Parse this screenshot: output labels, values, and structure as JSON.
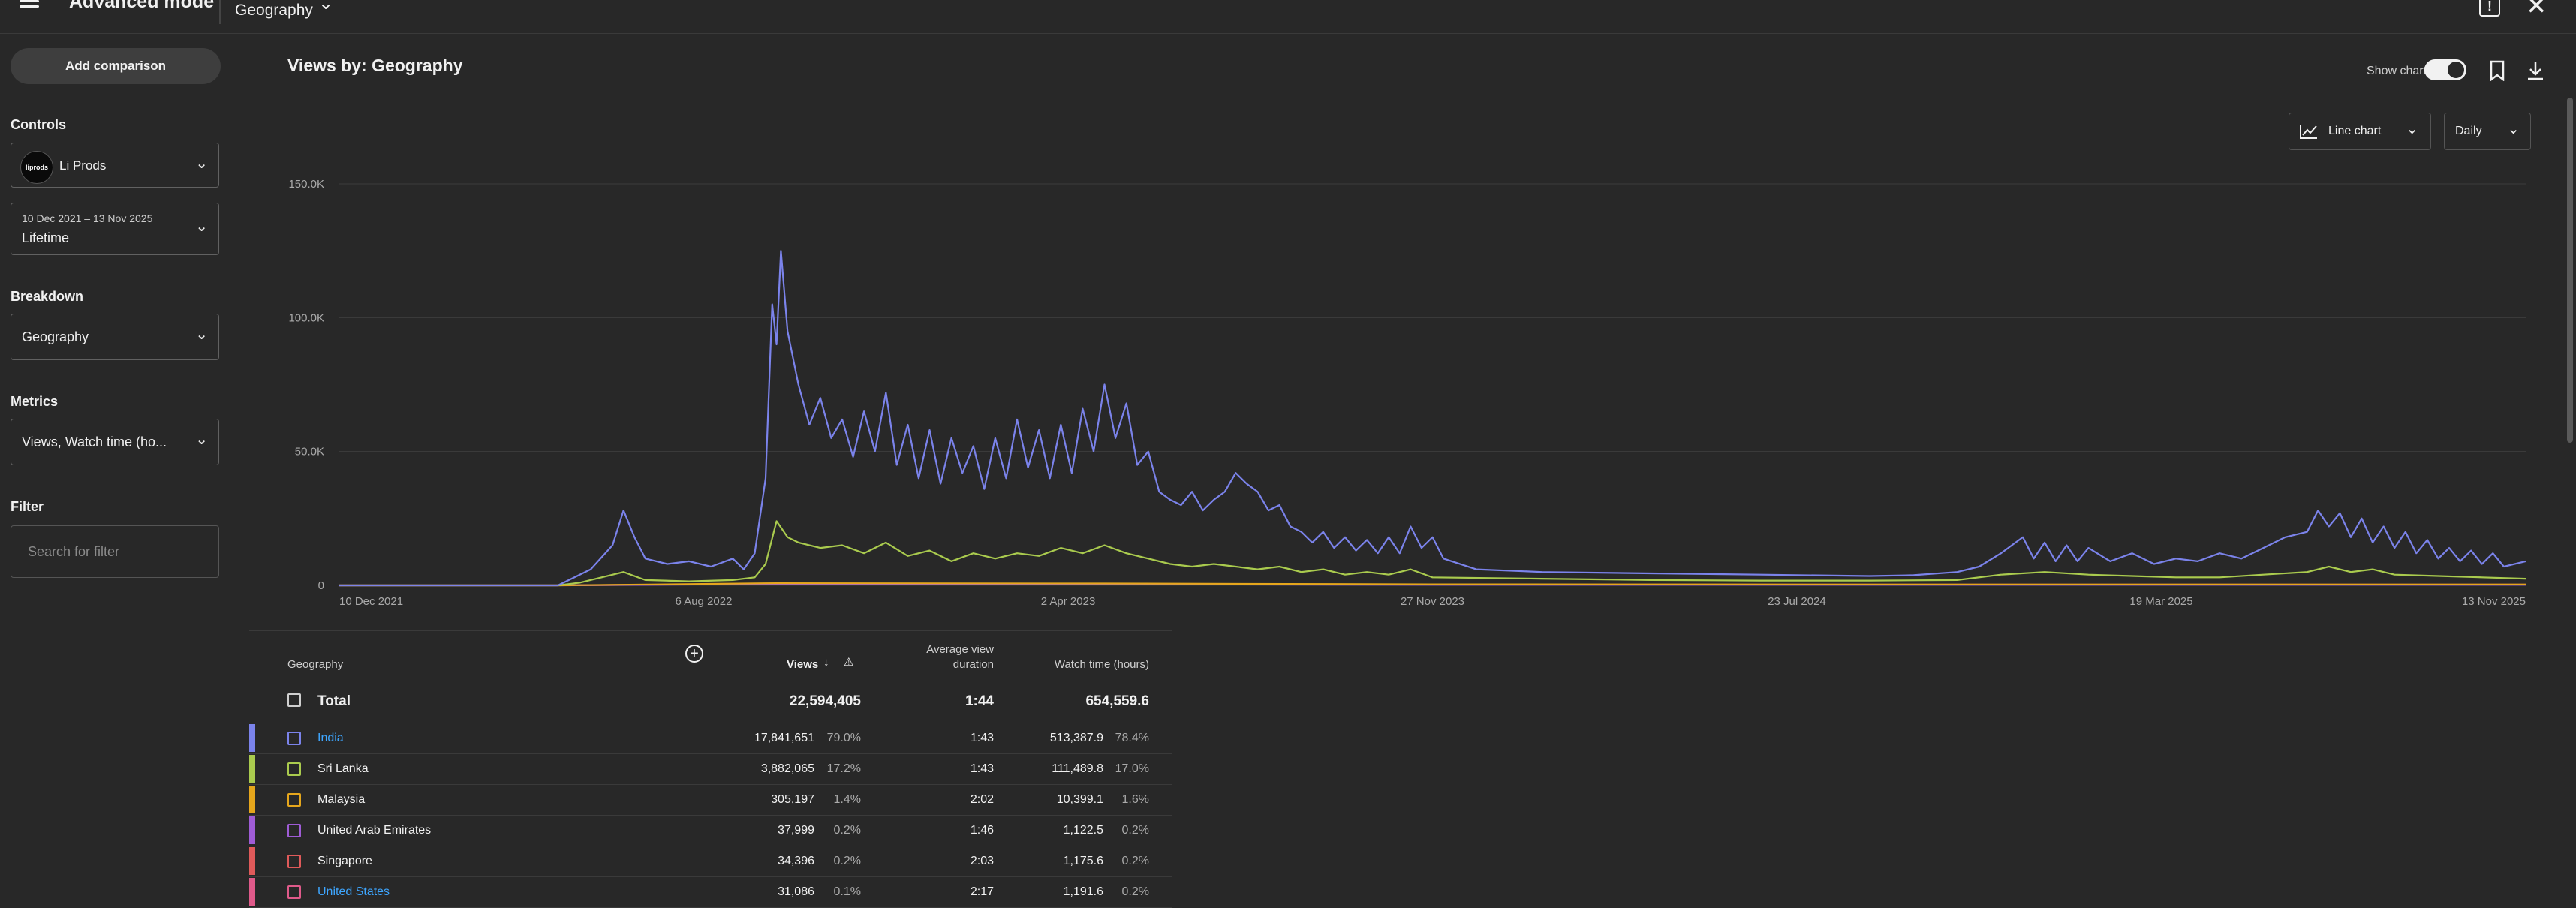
{
  "header": {
    "title": "Advanced mode",
    "dimension": "Geography"
  },
  "sidebar": {
    "add_comparison": "Add comparison",
    "controls_label": "Controls",
    "channel": "Li Prods",
    "channel_avatar_text": "liprods",
    "date_range": "10 Dec 2021 – 13 Nov 2025",
    "date_preset": "Lifetime",
    "breakdown_label": "Breakdown",
    "breakdown_value": "Geography",
    "metrics_label": "Metrics",
    "metrics_value": "Views, Watch time (ho...",
    "filter_label": "Filter",
    "filter_placeholder": "Search for filter"
  },
  "main": {
    "title": "Views by: Geography",
    "show_chart_label": "Show chart",
    "show_chart_on": true,
    "chart_type": "Line chart",
    "period": "Daily"
  },
  "chart_data": {
    "type": "line",
    "y_ticks": [
      "150.0K",
      "100.0K",
      "50.0K",
      "0"
    ],
    "ylim": [
      0,
      150000
    ],
    "x_ticks": [
      "10 Dec 2021",
      "6 Aug 2022",
      "2 Apr 2023",
      "27 Nov 2023",
      "23 Jul 2024",
      "19 Mar 2025",
      "13 Nov 2025"
    ],
    "series": [
      {
        "name": "India",
        "color": "#7b83eb",
        "points": [
          [
            0,
            0
          ],
          [
            0.1,
            0
          ],
          [
            0.105,
            2000
          ],
          [
            0.115,
            6000
          ],
          [
            0.125,
            15000
          ],
          [
            0.13,
            28000
          ],
          [
            0.135,
            18000
          ],
          [
            0.14,
            10000
          ],
          [
            0.15,
            8000
          ],
          [
            0.16,
            9000
          ],
          [
            0.17,
            7000
          ],
          [
            0.18,
            10000
          ],
          [
            0.185,
            6000
          ],
          [
            0.19,
            12000
          ],
          [
            0.195,
            40000
          ],
          [
            0.198,
            105000
          ],
          [
            0.2,
            90000
          ],
          [
            0.202,
            125000
          ],
          [
            0.205,
            95000
          ],
          [
            0.21,
            75000
          ],
          [
            0.215,
            60000
          ],
          [
            0.22,
            70000
          ],
          [
            0.225,
            55000
          ],
          [
            0.23,
            62000
          ],
          [
            0.235,
            48000
          ],
          [
            0.24,
            65000
          ],
          [
            0.245,
            50000
          ],
          [
            0.25,
            72000
          ],
          [
            0.255,
            45000
          ],
          [
            0.26,
            60000
          ],
          [
            0.265,
            40000
          ],
          [
            0.27,
            58000
          ],
          [
            0.275,
            38000
          ],
          [
            0.28,
            55000
          ],
          [
            0.285,
            42000
          ],
          [
            0.29,
            52000
          ],
          [
            0.295,
            36000
          ],
          [
            0.3,
            55000
          ],
          [
            0.305,
            40000
          ],
          [
            0.31,
            62000
          ],
          [
            0.315,
            44000
          ],
          [
            0.32,
            58000
          ],
          [
            0.325,
            40000
          ],
          [
            0.33,
            60000
          ],
          [
            0.335,
            42000
          ],
          [
            0.34,
            66000
          ],
          [
            0.345,
            50000
          ],
          [
            0.35,
            75000
          ],
          [
            0.355,
            55000
          ],
          [
            0.36,
            68000
          ],
          [
            0.365,
            45000
          ],
          [
            0.37,
            50000
          ],
          [
            0.375,
            35000
          ],
          [
            0.38,
            32000
          ],
          [
            0.385,
            30000
          ],
          [
            0.39,
            35000
          ],
          [
            0.395,
            28000
          ],
          [
            0.4,
            32000
          ],
          [
            0.405,
            35000
          ],
          [
            0.41,
            42000
          ],
          [
            0.415,
            38000
          ],
          [
            0.42,
            35000
          ],
          [
            0.425,
            28000
          ],
          [
            0.43,
            30000
          ],
          [
            0.435,
            22000
          ],
          [
            0.44,
            20000
          ],
          [
            0.445,
            16000
          ],
          [
            0.45,
            20000
          ],
          [
            0.455,
            14000
          ],
          [
            0.46,
            18000
          ],
          [
            0.465,
            13000
          ],
          [
            0.47,
            17000
          ],
          [
            0.475,
            12000
          ],
          [
            0.48,
            18000
          ],
          [
            0.485,
            12000
          ],
          [
            0.49,
            22000
          ],
          [
            0.495,
            14000
          ],
          [
            0.5,
            18000
          ],
          [
            0.505,
            10000
          ],
          [
            0.52,
            6000
          ],
          [
            0.55,
            5000
          ],
          [
            0.6,
            4500
          ],
          [
            0.65,
            4000
          ],
          [
            0.7,
            3500
          ],
          [
            0.72,
            3800
          ],
          [
            0.74,
            5000
          ],
          [
            0.75,
            7000
          ],
          [
            0.76,
            12000
          ],
          [
            0.77,
            18000
          ],
          [
            0.775,
            10000
          ],
          [
            0.78,
            16000
          ],
          [
            0.785,
            9000
          ],
          [
            0.79,
            15000
          ],
          [
            0.795,
            9000
          ],
          [
            0.8,
            14000
          ],
          [
            0.81,
            9000
          ],
          [
            0.82,
            12000
          ],
          [
            0.83,
            8000
          ],
          [
            0.84,
            10000
          ],
          [
            0.85,
            9000
          ],
          [
            0.86,
            12000
          ],
          [
            0.87,
            10000
          ],
          [
            0.88,
            14000
          ],
          [
            0.89,
            18000
          ],
          [
            0.9,
            20000
          ],
          [
            0.905,
            28000
          ],
          [
            0.91,
            22000
          ],
          [
            0.915,
            27000
          ],
          [
            0.92,
            18000
          ],
          [
            0.925,
            25000
          ],
          [
            0.93,
            16000
          ],
          [
            0.935,
            22000
          ],
          [
            0.94,
            14000
          ],
          [
            0.945,
            20000
          ],
          [
            0.95,
            12000
          ],
          [
            0.955,
            17000
          ],
          [
            0.96,
            10000
          ],
          [
            0.965,
            14000
          ],
          [
            0.97,
            9000
          ],
          [
            0.975,
            13000
          ],
          [
            0.98,
            8000
          ],
          [
            0.985,
            12000
          ],
          [
            0.99,
            7000
          ],
          [
            1,
            9000
          ]
        ]
      },
      {
        "name": "Sri Lanka",
        "color": "#aacb4e",
        "points": [
          [
            0,
            0
          ],
          [
            0.1,
            0
          ],
          [
            0.11,
            1000
          ],
          [
            0.12,
            3000
          ],
          [
            0.13,
            5000
          ],
          [
            0.14,
            2000
          ],
          [
            0.16,
            1500
          ],
          [
            0.18,
            2000
          ],
          [
            0.19,
            3000
          ],
          [
            0.195,
            8000
          ],
          [
            0.2,
            24000
          ],
          [
            0.205,
            18000
          ],
          [
            0.21,
            16000
          ],
          [
            0.22,
            14000
          ],
          [
            0.23,
            15000
          ],
          [
            0.24,
            12000
          ],
          [
            0.25,
            16000
          ],
          [
            0.26,
            11000
          ],
          [
            0.27,
            13000
          ],
          [
            0.28,
            9000
          ],
          [
            0.29,
            12000
          ],
          [
            0.3,
            10000
          ],
          [
            0.31,
            12000
          ],
          [
            0.32,
            11000
          ],
          [
            0.33,
            14000
          ],
          [
            0.34,
            12000
          ],
          [
            0.35,
            15000
          ],
          [
            0.36,
            12000
          ],
          [
            0.37,
            10000
          ],
          [
            0.38,
            8000
          ],
          [
            0.39,
            7000
          ],
          [
            0.4,
            8000
          ],
          [
            0.41,
            7000
          ],
          [
            0.42,
            6000
          ],
          [
            0.43,
            7000
          ],
          [
            0.44,
            5000
          ],
          [
            0.45,
            6000
          ],
          [
            0.46,
            4000
          ],
          [
            0.47,
            5000
          ],
          [
            0.48,
            4000
          ],
          [
            0.49,
            6000
          ],
          [
            0.5,
            3000
          ],
          [
            0.55,
            2500
          ],
          [
            0.6,
            2000
          ],
          [
            0.65,
            1800
          ],
          [
            0.7,
            1800
          ],
          [
            0.74,
            2000
          ],
          [
            0.76,
            4000
          ],
          [
            0.78,
            5000
          ],
          [
            0.8,
            4000
          ],
          [
            0.82,
            3500
          ],
          [
            0.84,
            3000
          ],
          [
            0.86,
            3000
          ],
          [
            0.88,
            4000
          ],
          [
            0.9,
            5000
          ],
          [
            0.91,
            7000
          ],
          [
            0.92,
            5000
          ],
          [
            0.93,
            6000
          ],
          [
            0.94,
            4000
          ],
          [
            0.96,
            3500
          ],
          [
            0.98,
            3000
          ],
          [
            1,
            2500
          ]
        ]
      },
      {
        "name": "Malaysia",
        "color": "#e5a61c",
        "points": [
          [
            0,
            0
          ],
          [
            0.1,
            0
          ],
          [
            0.2,
            800
          ],
          [
            0.35,
            700
          ],
          [
            0.5,
            400
          ],
          [
            0.75,
            300
          ],
          [
            1,
            300
          ]
        ]
      },
      {
        "name": "United Arab Emirates",
        "color": "#9f5cd6",
        "points": [
          [
            0,
            0
          ],
          [
            0.1,
            0
          ],
          [
            0.2,
            500
          ],
          [
            0.35,
            400
          ],
          [
            0.5,
            200
          ],
          [
            1,
            200
          ]
        ]
      },
      {
        "name": "Singapore",
        "color": "#e05a5a",
        "points": [
          [
            0,
            0
          ],
          [
            0.1,
            0
          ],
          [
            0.2,
            600
          ],
          [
            0.35,
            500
          ],
          [
            0.5,
            300
          ],
          [
            1,
            300
          ]
        ]
      }
    ]
  },
  "table": {
    "headers": {
      "geography": "Geography",
      "views": "Views",
      "avd": "Average view",
      "avd2": "duration",
      "watch": "Watch time (hours)"
    },
    "total": {
      "label": "Total",
      "views": "22,594,405",
      "avd": "1:44",
      "watch": "654,559.6"
    },
    "rows": [
      {
        "name": "India",
        "views": "17,841,651",
        "views_pct": "79.0%",
        "avd": "1:43",
        "watch": "513,387.9",
        "watch_pct": "78.4%",
        "color": "#7b83eb",
        "link": true
      },
      {
        "name": "Sri Lanka",
        "views": "3,882,065",
        "views_pct": "17.2%",
        "avd": "1:43",
        "watch": "111,489.8",
        "watch_pct": "17.0%",
        "color": "#aacb4e",
        "link": false
      },
      {
        "name": "Malaysia",
        "views": "305,197",
        "views_pct": "1.4%",
        "avd": "2:02",
        "watch": "10,399.1",
        "watch_pct": "1.6%",
        "color": "#e5a61c",
        "link": false
      },
      {
        "name": "United Arab Emirates",
        "views": "37,999",
        "views_pct": "0.2%",
        "avd": "1:46",
        "watch": "1,122.5",
        "watch_pct": "0.2%",
        "color": "#9f5cd6",
        "link": false
      },
      {
        "name": "Singapore",
        "views": "34,396",
        "views_pct": "0.2%",
        "avd": "2:03",
        "watch": "1,175.6",
        "watch_pct": "0.2%",
        "color": "#e05a5a",
        "link": false
      },
      {
        "name": "United States",
        "views": "31,086",
        "views_pct": "0.1%",
        "avd": "2:17",
        "watch": "1,191.6",
        "watch_pct": "0.2%",
        "color": "#e05a8a",
        "link": true
      }
    ]
  }
}
